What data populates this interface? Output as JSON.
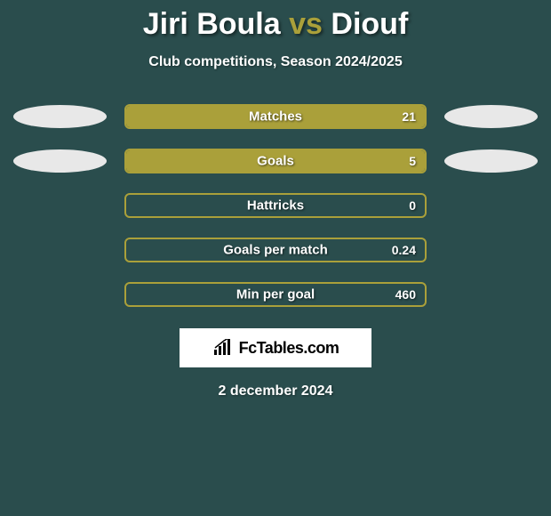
{
  "title": {
    "player1": "Jiri Boula",
    "vs": "vs",
    "player2": "Diouf",
    "player1_color": "#ffffff",
    "vs_color": "#aaa03a",
    "player2_color": "#ffffff"
  },
  "subtitle": "Club competitions, Season 2024/2025",
  "background_color": "#2a4d4d",
  "bar_border_color": "#aaa03a",
  "fill_color_left": "#aaa03a",
  "fill_color_right": "#aaa03a",
  "ellipse_left_color": "#e8e8e8",
  "ellipse_right_color": "#e8e8e8",
  "stats": [
    {
      "label": "Matches",
      "value_left": "",
      "value_right": "21",
      "fill_left_pct": 0,
      "fill_right_pct": 100,
      "show_left_ellipse": true,
      "show_right_ellipse": true
    },
    {
      "label": "Goals",
      "value_left": "",
      "value_right": "5",
      "fill_left_pct": 0,
      "fill_right_pct": 100,
      "show_left_ellipse": true,
      "show_right_ellipse": true
    },
    {
      "label": "Hattricks",
      "value_left": "",
      "value_right": "0",
      "fill_left_pct": 0,
      "fill_right_pct": 0,
      "show_left_ellipse": false,
      "show_right_ellipse": false
    },
    {
      "label": "Goals per match",
      "value_left": "",
      "value_right": "0.24",
      "fill_left_pct": 0,
      "fill_right_pct": 0,
      "show_left_ellipse": false,
      "show_right_ellipse": false
    },
    {
      "label": "Min per goal",
      "value_left": "",
      "value_right": "460",
      "fill_left_pct": 0,
      "fill_right_pct": 0,
      "show_left_ellipse": false,
      "show_right_ellipse": false
    }
  ],
  "logo_text": "FcTables.com",
  "date": "2 december 2024"
}
